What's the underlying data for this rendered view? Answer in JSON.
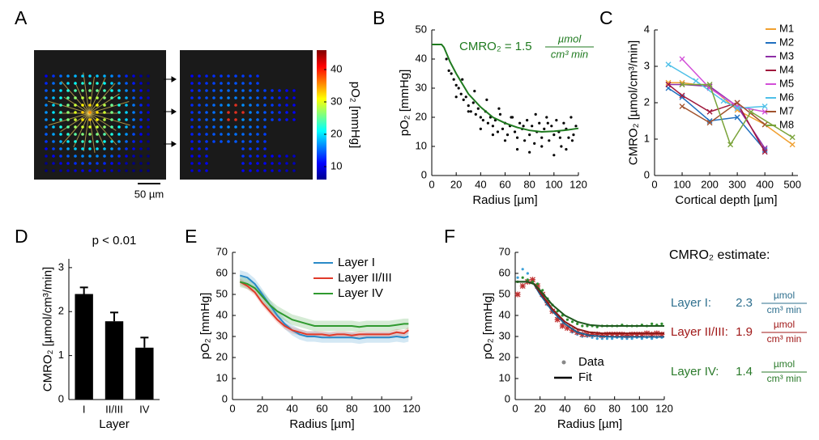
{
  "chart_data": [
    {
      "type": "image",
      "panel": "A",
      "scale_bar": "50 µm",
      "colorbar": {
        "label": "pO₂ [mmHg]",
        "lim": [
          6,
          46
        ],
        "ticks": [
          10,
          20,
          30,
          40
        ]
      }
    },
    {
      "type": "scatter",
      "panel": "B",
      "annotation": "CMRO₂ = 1.5",
      "annotation_unit": {
        "numerator": "µmol",
        "denominator": "cm³ min"
      },
      "xlabel": "Radius [µm]",
      "ylabel": "pO₂ [mmHg]",
      "xlim": [
        0,
        120
      ],
      "xticks": [
        0,
        20,
        40,
        60,
        80,
        100,
        120
      ],
      "ylim": [
        0,
        50
      ],
      "yticks": [
        0,
        10,
        20,
        30,
        40,
        50
      ],
      "series": [
        {
          "mode": "markers",
          "marker": "dot",
          "color": "#000000",
          "x": [
            12,
            14,
            16,
            18,
            20,
            22,
            24,
            26,
            28,
            30,
            32,
            34,
            36,
            38,
            40,
            42,
            44,
            46,
            48,
            50,
            52,
            54,
            56,
            58,
            60,
            62,
            64,
            66,
            68,
            70,
            72,
            74,
            76,
            78,
            80,
            82,
            84,
            86,
            88,
            90,
            92,
            94,
            96,
            98,
            100,
            102,
            104,
            106,
            108,
            110,
            112,
            114,
            116,
            118,
            20,
            25,
            30,
            35,
            40,
            45,
            50,
            55,
            60,
            65,
            70,
            75,
            80,
            85,
            90,
            95,
            100,
            105,
            110,
            115
          ],
          "values": [
            40,
            36,
            35,
            33,
            31,
            30,
            28,
            26,
            27,
            24,
            22,
            25,
            21,
            23,
            20,
            19,
            22,
            18,
            20,
            17,
            19,
            15,
            21,
            16,
            18,
            14,
            17,
            20,
            15,
            13,
            18,
            16,
            12,
            19,
            14,
            17,
            11,
            15,
            18,
            13,
            16,
            20,
            12,
            17,
            14,
            19,
            15,
            10,
            18,
            16,
            13,
            20,
            14,
            17,
            27,
            33,
            22,
            29,
            16,
            26,
            14,
            23,
            12,
            20,
            9,
            17,
            8,
            21,
            10,
            18,
            7,
            13,
            9,
            12
          ]
        },
        {
          "mode": "lines",
          "color": "#1f7a1f",
          "x": [
            0,
            8,
            10,
            15,
            20,
            30,
            40,
            50,
            60,
            70,
            80,
            90,
            100,
            110,
            120
          ],
          "values": [
            45,
            45,
            44,
            39,
            35,
            28,
            23.5,
            20,
            18,
            16.5,
            15.5,
            15,
            15.2,
            15.6,
            16.2
          ]
        }
      ]
    },
    {
      "type": "line",
      "panel": "C",
      "xlabel": "Cortical depth [µm]",
      "ylabel": "CMRO₂ [µmol/cm³/min]",
      "legend": "upper right",
      "xlim": [
        0,
        520
      ],
      "xticks": [
        0,
        100,
        200,
        300,
        400,
        500
      ],
      "ylim": [
        0,
        4
      ],
      "yticks": [
        0,
        1,
        2,
        3,
        4
      ],
      "series": [
        {
          "name": "M1",
          "color": "#f0a030",
          "mode": "lines+markers",
          "marker": "x",
          "x": [
            50,
            100,
            200,
            300,
            400,
            500
          ],
          "values": [
            2.55,
            2.55,
            2.45,
            1.8,
            1.4,
            0.85
          ]
        },
        {
          "name": "M2",
          "color": "#1f6fbf",
          "mode": "lines+markers",
          "marker": "x",
          "x": [
            50,
            100,
            200,
            300,
            400
          ],
          "values": [
            2.4,
            2.15,
            1.5,
            1.6,
            0.7
          ]
        },
        {
          "name": "M3",
          "color": "#8e2fa6",
          "mode": "lines+markers",
          "marker": "x",
          "x": [
            50,
            100,
            200,
            300,
            400
          ],
          "values": [
            2.5,
            2.5,
            2.45,
            1.9,
            0.75
          ]
        },
        {
          "name": "M4",
          "color": "#a0183c",
          "mode": "lines+markers",
          "marker": "x",
          "x": [
            50,
            100,
            200,
            300,
            400
          ],
          "values": [
            2.5,
            2.2,
            1.75,
            2.0,
            0.65
          ]
        },
        {
          "name": "M5",
          "color": "#d24fd8",
          "mode": "lines+markers",
          "marker": "x",
          "x": [
            100,
            200,
            300,
            400
          ],
          "values": [
            3.2,
            2.4,
            1.9,
            1.75
          ]
        },
        {
          "name": "M6",
          "color": "#4fc0e8",
          "mode": "lines+markers",
          "marker": "x",
          "x": [
            50,
            150,
            250,
            300,
            400
          ],
          "values": [
            3.05,
            2.6,
            2.05,
            1.85,
            1.9
          ]
        },
        {
          "name": "M7",
          "color": "#a0522d",
          "mode": "lines+markers",
          "marker": "x",
          "x": [
            100,
            200,
            300,
            400
          ],
          "values": [
            1.9,
            1.45,
            2.0,
            1.4
          ]
        },
        {
          "name": "M8",
          "color": "#7aa33a",
          "mode": "lines+markers",
          "marker": "x",
          "x": [
            100,
            200,
            275,
            350,
            500
          ],
          "values": [
            2.5,
            2.5,
            0.85,
            1.75,
            1.05
          ]
        }
      ]
    },
    {
      "type": "bar",
      "panel": "D",
      "title": "p < 0.01",
      "xlabel": "Layer",
      "ylabel": "CMRO₂ [µmol/cm³/min]",
      "color": "#000000",
      "categories": [
        "I",
        "II/III",
        "IV"
      ],
      "values": [
        2.4,
        1.78,
        1.18
      ],
      "errors": [
        0.15,
        0.2,
        0.23
      ],
      "ylim": [
        0,
        3.2
      ],
      "yticks": [
        0,
        1,
        2,
        3
      ]
    },
    {
      "type": "line",
      "panel": "E",
      "xlabel": "Radius [µm]",
      "ylabel": "pO₂ [mmHg]",
      "legend": "upper right",
      "xlim": [
        0,
        120
      ],
      "xticks": [
        0,
        20,
        40,
        60,
        80,
        100,
        120
      ],
      "ylim": [
        0,
        70
      ],
      "yticks": [
        0,
        10,
        20,
        30,
        40,
        50,
        60,
        70
      ],
      "series": [
        {
          "name": "Layer I",
          "color": "#2a8ac8",
          "mode": "lines",
          "band": 2.5,
          "x": [
            5,
            10,
            15,
            20,
            25,
            30,
            35,
            40,
            45,
            50,
            55,
            60,
            65,
            70,
            75,
            80,
            85,
            90,
            95,
            100,
            105,
            110,
            115,
            118
          ],
          "values": [
            59,
            58,
            55,
            50,
            45,
            40,
            36,
            33,
            31,
            30,
            30,
            29.5,
            29.5,
            29.5,
            29.5,
            29.5,
            29,
            29.5,
            29.5,
            29.5,
            29.5,
            30,
            29.5,
            30
          ]
        },
        {
          "name": "Layer II/III",
          "color": "#e03a2a",
          "mode": "lines",
          "band": 1.5,
          "x": [
            5,
            10,
            15,
            20,
            25,
            30,
            35,
            40,
            45,
            50,
            55,
            60,
            65,
            70,
            75,
            80,
            85,
            90,
            95,
            100,
            105,
            110,
            115,
            118
          ],
          "values": [
            56,
            54,
            51,
            46,
            42,
            38,
            35,
            33,
            32,
            31,
            31,
            31,
            30.5,
            31,
            31,
            30.5,
            31,
            31,
            31,
            31,
            31,
            32,
            31.5,
            33
          ]
        },
        {
          "name": "Layer IV",
          "color": "#2f9a2f",
          "mode": "lines",
          "band": 2.5,
          "x": [
            5,
            10,
            15,
            20,
            25,
            30,
            35,
            40,
            45,
            50,
            55,
            60,
            65,
            70,
            75,
            80,
            85,
            90,
            95,
            100,
            105,
            110,
            115,
            118
          ],
          "values": [
            56,
            55,
            53,
            49,
            45,
            42,
            40,
            38,
            37,
            36,
            35,
            35,
            35,
            35,
            35,
            35,
            34.5,
            35,
            35,
            35,
            35,
            35.5,
            36,
            36
          ]
        }
      ]
    },
    {
      "type": "scatter",
      "panel": "F",
      "xlabel": "Radius [µm]",
      "ylabel": "pO₂ [mmHg]",
      "xlim": [
        0,
        120
      ],
      "xticks": [
        0,
        20,
        40,
        60,
        80,
        100,
        120
      ],
      "ylim": [
        0,
        70
      ],
      "yticks": [
        0,
        10,
        20,
        30,
        40,
        50,
        60,
        70
      ],
      "legend_entries": [
        {
          "name": "Data",
          "marker": "dot",
          "color": "#888888"
        },
        {
          "name": "Fit",
          "color": "#000000"
        }
      ],
      "estimate_title": "CMRO₂ estimate:",
      "unit": {
        "numerator": "µmol",
        "denominator": "cm³ min"
      },
      "estimates": [
        {
          "label": "Layer I:",
          "value": 2.3,
          "color": "#2e6f8e"
        },
        {
          "label": "Layer II/III:",
          "value": 1.9,
          "color": "#a01818"
        },
        {
          "label": "Layer IV:",
          "value": 1.4,
          "color": "#2a7a2a"
        }
      ],
      "series": [
        {
          "mode": "markers",
          "marker": "dot",
          "color": "#3aa0d8",
          "x": [
            2,
            6,
            10,
            14,
            18,
            22,
            26,
            30,
            34,
            38,
            42,
            46,
            50,
            54,
            58,
            62,
            66,
            70,
            74,
            78,
            82,
            86,
            90,
            94,
            98,
            102,
            106,
            110,
            114,
            118
          ],
          "values": [
            58,
            62,
            60,
            57,
            55,
            50,
            45,
            42,
            39,
            36,
            34,
            32,
            31,
            30,
            30,
            29.5,
            29,
            29,
            29,
            29,
            29.5,
            29,
            29,
            29,
            29.5,
            29,
            29.5,
            29,
            29.5,
            29.5
          ]
        },
        {
          "mode": "markers",
          "marker": "star",
          "color": "#c03030",
          "x": [
            2,
            6,
            10,
            14,
            18,
            22,
            26,
            30,
            34,
            38,
            42,
            46,
            50,
            54,
            58,
            62,
            66,
            70,
            74,
            78,
            82,
            86,
            90,
            94,
            98,
            102,
            106,
            110,
            114,
            118
          ],
          "values": [
            50,
            54,
            56,
            57,
            54,
            50,
            46,
            42,
            38,
            35,
            34,
            33,
            32,
            31,
            31,
            31,
            31,
            30.5,
            31,
            31,
            31,
            31,
            30.5,
            31,
            31,
            31,
            31.5,
            31,
            31.5,
            31
          ]
        },
        {
          "mode": "markers",
          "marker": "dot",
          "color": "#2f8f2f",
          "x": [
            2,
            6,
            10,
            14,
            18,
            22,
            26,
            30,
            34,
            38,
            42,
            46,
            50,
            54,
            58,
            62,
            66,
            70,
            74,
            78,
            82,
            86,
            90,
            94,
            98,
            102,
            106,
            110,
            114,
            118
          ],
          "values": [
            56,
            58,
            57,
            56,
            55,
            52,
            48,
            45,
            42,
            40,
            38,
            37,
            36,
            35,
            35,
            35,
            34.5,
            35,
            35,
            35,
            35,
            35.5,
            35,
            35,
            35,
            35.5,
            35,
            36,
            35.5,
            36
          ]
        },
        {
          "mode": "lines",
          "color": "#1f5f8f",
          "x": [
            0,
            10,
            15,
            20,
            30,
            40,
            50,
            60,
            70,
            80,
            90,
            100,
            110,
            120
          ],
          "values": [
            56,
            56,
            55,
            50,
            42,
            36,
            32,
            30.5,
            30,
            29.8,
            29.8,
            29.8,
            29.8,
            29.8
          ]
        },
        {
          "mode": "lines",
          "color": "#8b1a1a",
          "x": [
            0,
            10,
            15,
            20,
            30,
            40,
            50,
            60,
            70,
            80,
            90,
            100,
            110,
            120
          ],
          "values": [
            56,
            56,
            55,
            51,
            43,
            37,
            33.5,
            32,
            31.5,
            31.5,
            31.5,
            31.5,
            31.5,
            31.5
          ]
        },
        {
          "mode": "lines",
          "color": "#1f5a1f",
          "x": [
            0,
            10,
            15,
            20,
            30,
            40,
            50,
            60,
            70,
            80,
            90,
            100,
            110,
            120
          ],
          "values": [
            56,
            56,
            55,
            52,
            45,
            40,
            37,
            35.5,
            35,
            35,
            35,
            35,
            35,
            35
          ]
        }
      ]
    }
  ]
}
